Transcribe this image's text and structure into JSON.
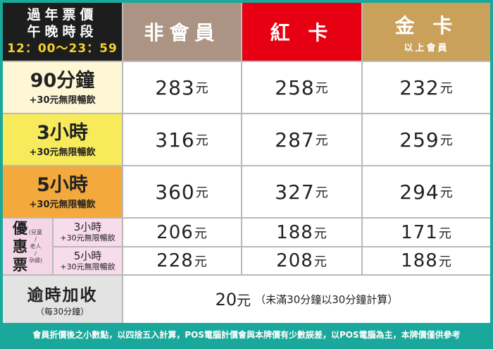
{
  "header": {
    "title_line1": "過年票價",
    "title_line2": "午晚時段",
    "title_time": "12：00～23：59",
    "col_non_member": "非會員",
    "col_red_card": "紅 卡",
    "col_gold_card": "金 卡",
    "col_gold_sub": "以上會員"
  },
  "rows": [
    {
      "label": "90分鐘",
      "sub": "+30元無限暢飲",
      "prices": [
        "283",
        "258",
        "232"
      ]
    },
    {
      "label": "3小時",
      "sub": "+30元無限暢飲",
      "prices": [
        "316",
        "287",
        "259"
      ]
    },
    {
      "label": "5小時",
      "sub": "+30元無限暢飲",
      "prices": [
        "360",
        "327",
        "294"
      ]
    }
  ],
  "discount": {
    "label_chars": [
      "優",
      "惠",
      "票"
    ],
    "note_chars": [
      "(兒童",
      "/",
      "老人",
      "/",
      "孕婦)"
    ],
    "items": [
      {
        "label": "3小時",
        "sub": "+30元無限暢飲",
        "prices": [
          "206",
          "188",
          "171"
        ]
      },
      {
        "label": "5小時",
        "sub": "+30元無限暢飲",
        "prices": [
          "228",
          "208",
          "188"
        ]
      }
    ]
  },
  "overtime": {
    "label": "逾時加收",
    "sub": "（每30分鐘）",
    "price": "20",
    "note": "（未滿30分鐘以30分鐘計算）"
  },
  "unit": "元",
  "footer": "會員折價後之小數點，以四捨五入計算，POS電腦計價會與本牌價有少數誤差，以POS電腦為主，本牌價僅供參考",
  "colors": {
    "background": "#19a89b",
    "non_member": "#ab9483",
    "red_card": "#e60012",
    "gold_card": "#c9a15b",
    "row_90": "#fef7d6",
    "row_3h": "#f7ea5b",
    "row_5h": "#f4a93c",
    "discount": "#f8dbec",
    "overtime": "#e3e3e3"
  }
}
